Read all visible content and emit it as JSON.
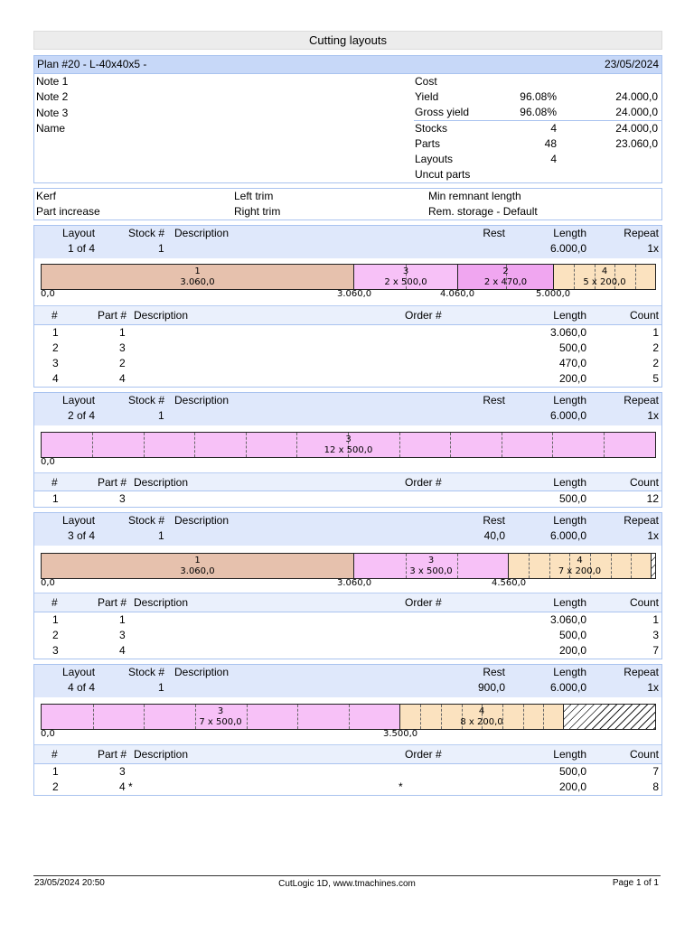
{
  "report_title": "Cutting layouts",
  "plan": {
    "name": "Plan #20  -  L-40x40x5  -",
    "date": "23/05/2024"
  },
  "info": {
    "notes": [
      "Note 1",
      "Note 2",
      "Note 3",
      "Name"
    ],
    "cost_label": "Cost",
    "yield": {
      "label": "Yield",
      "percent": "96.08%",
      "value": "24.000,0"
    },
    "gross_yield": {
      "label": "Gross yield",
      "percent": "96.08%",
      "value": "24.000,0"
    },
    "stocks": {
      "label": "Stocks",
      "count": "4",
      "value": "24.000,0"
    },
    "parts": {
      "label": "Parts",
      "count": "48",
      "value": "23.060,0"
    },
    "layouts": {
      "label": "Layouts",
      "count": "4"
    },
    "uncut_label": "Uncut parts"
  },
  "settings": {
    "kerf": "Kerf",
    "part_increase": "Part increase",
    "left_trim": "Left trim",
    "right_trim": "Right trim",
    "min_remnant": "Min remnant length",
    "rem_storage": "Rem. storage - Default"
  },
  "layout_headers": {
    "layout": "Layout",
    "stock": "Stock #",
    "description": "Description",
    "rest": "Rest",
    "length": "Length",
    "repeat": "Repeat"
  },
  "part_headers": {
    "num": "#",
    "part": "Part #",
    "description": "Description",
    "order": "Order #",
    "length": "Length",
    "count": "Count"
  },
  "layouts": [
    {
      "id": "1 of 4",
      "stock": "1",
      "rest": "",
      "length": "6.000,0",
      "repeat": "1x",
      "segments": [
        {
          "part": "1",
          "label": "3.060,0"
        },
        {
          "part": "3",
          "label": "2 x 500,0"
        },
        {
          "part": "2",
          "label": "2 x 470,0"
        },
        {
          "part": "4",
          "label": "5 x 200,0"
        }
      ],
      "marks": [
        "0,0",
        "3.060,0",
        "4.060,0",
        "5.000,0"
      ],
      "rows": [
        {
          "num": "1",
          "part": "1",
          "order": "",
          "length": "3.060,0",
          "count": "1"
        },
        {
          "num": "2",
          "part": "3",
          "order": "",
          "length": "500,0",
          "count": "2"
        },
        {
          "num": "3",
          "part": "2",
          "order": "",
          "length": "470,0",
          "count": "2"
        },
        {
          "num": "4",
          "part": "4",
          "order": "",
          "length": "200,0",
          "count": "5"
        }
      ]
    },
    {
      "id": "2 of 4",
      "stock": "1",
      "rest": "",
      "length": "6.000,0",
      "repeat": "1x",
      "segments": [
        {
          "part": "3",
          "label": "12 x 500,0"
        }
      ],
      "marks": [
        "0,0"
      ],
      "rows": [
        {
          "num": "1",
          "part": "3",
          "order": "",
          "length": "500,0",
          "count": "12"
        }
      ]
    },
    {
      "id": "3 of 4",
      "stock": "1",
      "rest": "40,0",
      "length": "6.000,0",
      "repeat": "1x",
      "segments": [
        {
          "part": "1",
          "label": "3.060,0"
        },
        {
          "part": "3",
          "label": "3 x 500,0"
        },
        {
          "part": "4",
          "label": "7 x 200,0"
        }
      ],
      "marks": [
        "0,0",
        "3.060,0",
        "4.560,0"
      ],
      "rows": [
        {
          "num": "1",
          "part": "1",
          "order": "",
          "length": "3.060,0",
          "count": "1"
        },
        {
          "num": "2",
          "part": "3",
          "order": "",
          "length": "500,0",
          "count": "3"
        },
        {
          "num": "3",
          "part": "4",
          "order": "",
          "length": "200,0",
          "count": "7"
        }
      ]
    },
    {
      "id": "4 of 4",
      "stock": "1",
      "rest": "900,0",
      "length": "6.000,0",
      "repeat": "1x",
      "segments": [
        {
          "part": "3",
          "label": "7 x 500,0"
        },
        {
          "part": "4",
          "label": "8 x 200,0"
        }
      ],
      "marks": [
        "0,0",
        "3.500,0"
      ],
      "rows": [
        {
          "num": "1",
          "part": "3",
          "order": "",
          "length": "500,0",
          "count": "7"
        },
        {
          "num": "2",
          "part": "4 *",
          "order": "*",
          "length": "200,0",
          "count": "8"
        }
      ]
    }
  ],
  "footer": {
    "datetime": "23/05/2024 20:50",
    "app": "CutLogic 1D, www.tmachines.com",
    "page": "Page 1 of 1"
  }
}
